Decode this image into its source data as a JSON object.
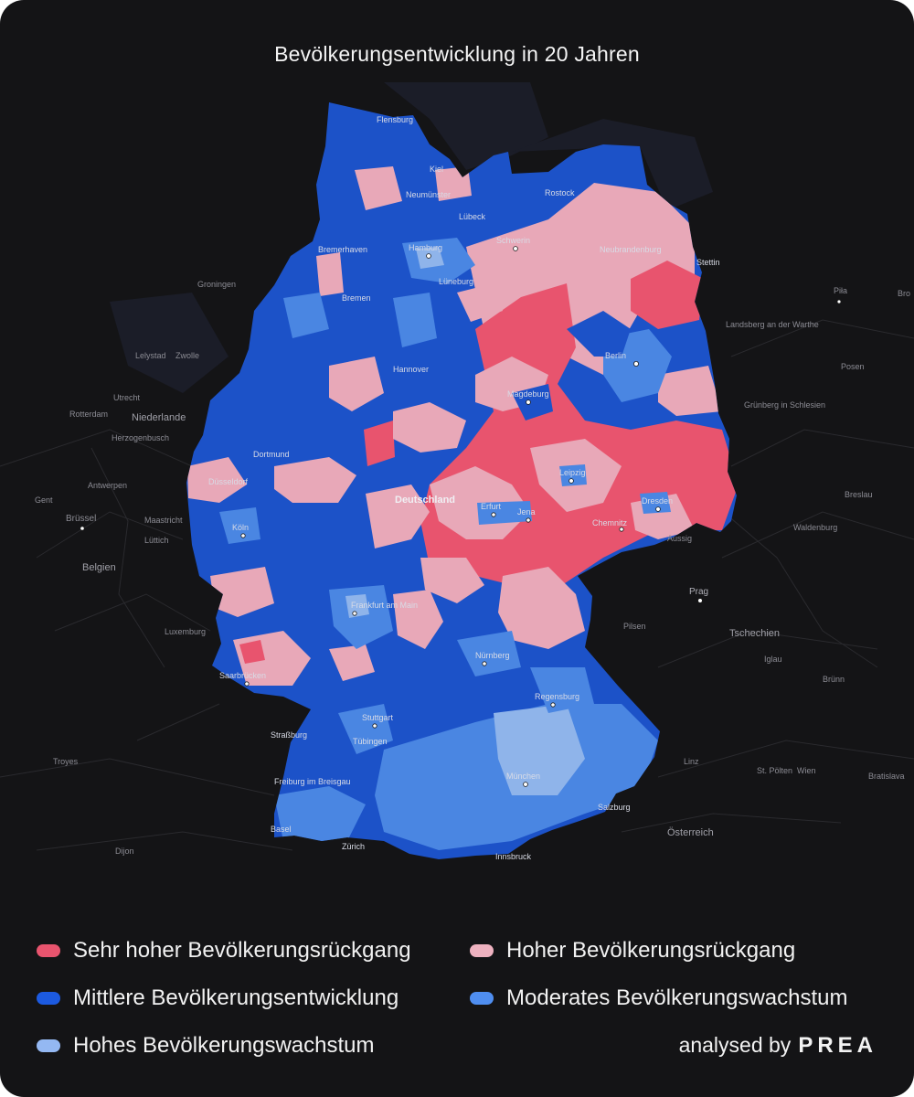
{
  "title": "Bevölkerungsentwicklung in 20 Jahren",
  "colors": {
    "background": "#141416",
    "sehr_hoher_rueckgang": "#e8546e",
    "hoher_rueckgang": "#e8a8b8",
    "mittlere": "#1c52c8",
    "moderates_wachstum": "#4a86e2",
    "hohes_wachstum": "#8fb4ea"
  },
  "legend": [
    {
      "label": "Sehr hoher Bevölkerungsrückgang",
      "color": "#e8546e"
    },
    {
      "label": "Hoher Bevölkerungsrückgang",
      "color": "#eeb2c0"
    },
    {
      "label": "Mittlere Bevölkerungsentwicklung",
      "color": "#1c5ae0"
    },
    {
      "label": "Moderates Bevölkerungswachstum",
      "color": "#4f8ef0"
    },
    {
      "label": "Hohes Bevölkerungswachstum",
      "color": "#94b8f2"
    }
  ],
  "credit": {
    "prefix": "analysed by",
    "brand": "PREA"
  },
  "cities_de": [
    "Flensburg",
    "Kiel",
    "Neumünster",
    "Lübeck",
    "Rostock",
    "Bremerhaven",
    "Hamburg",
    "Schwerin",
    "Neubrandenburg",
    "Stettin",
    "Lüneburg",
    "Bremen",
    "Berlin",
    "Hannover",
    "Magdeburg",
    "Dortmund",
    "Düsseldorf",
    "Deutschland",
    "Leipzig",
    "Erfurt",
    "Jena",
    "Dresden",
    "Köln",
    "Chemnitz",
    "Frankfurt am Main",
    "Nürnberg",
    "Saarbrücken",
    "Regensburg",
    "Stuttgart",
    "Tübingen",
    "München",
    "Freiburg im Breisgau",
    "Basel",
    "Salzburg",
    "Zürich",
    "Innsbruck",
    "Straßburg"
  ],
  "places_outside": [
    "Groningen",
    "Lelystad",
    "Zwolle",
    "Utrecht",
    "Niederlande",
    "Rotterdam",
    "Herzogenbusch",
    "Antwerpen",
    "Gent",
    "Brüssel",
    "Belgien",
    "Maastricht",
    "Lüttich",
    "Luxemburg",
    "Troyes",
    "Dijon",
    "Piła",
    "Landsberg an der Warthe",
    "Posen",
    "Grünberg in Schlesien",
    "Breslau",
    "Waldenburg",
    "Aussig",
    "Prag",
    "Pilsen",
    "Tschechien",
    "Iglau",
    "Brünn",
    "Linz",
    "St. Pölten",
    "Wien",
    "Österreich",
    "Bratislava",
    "Bro"
  ]
}
